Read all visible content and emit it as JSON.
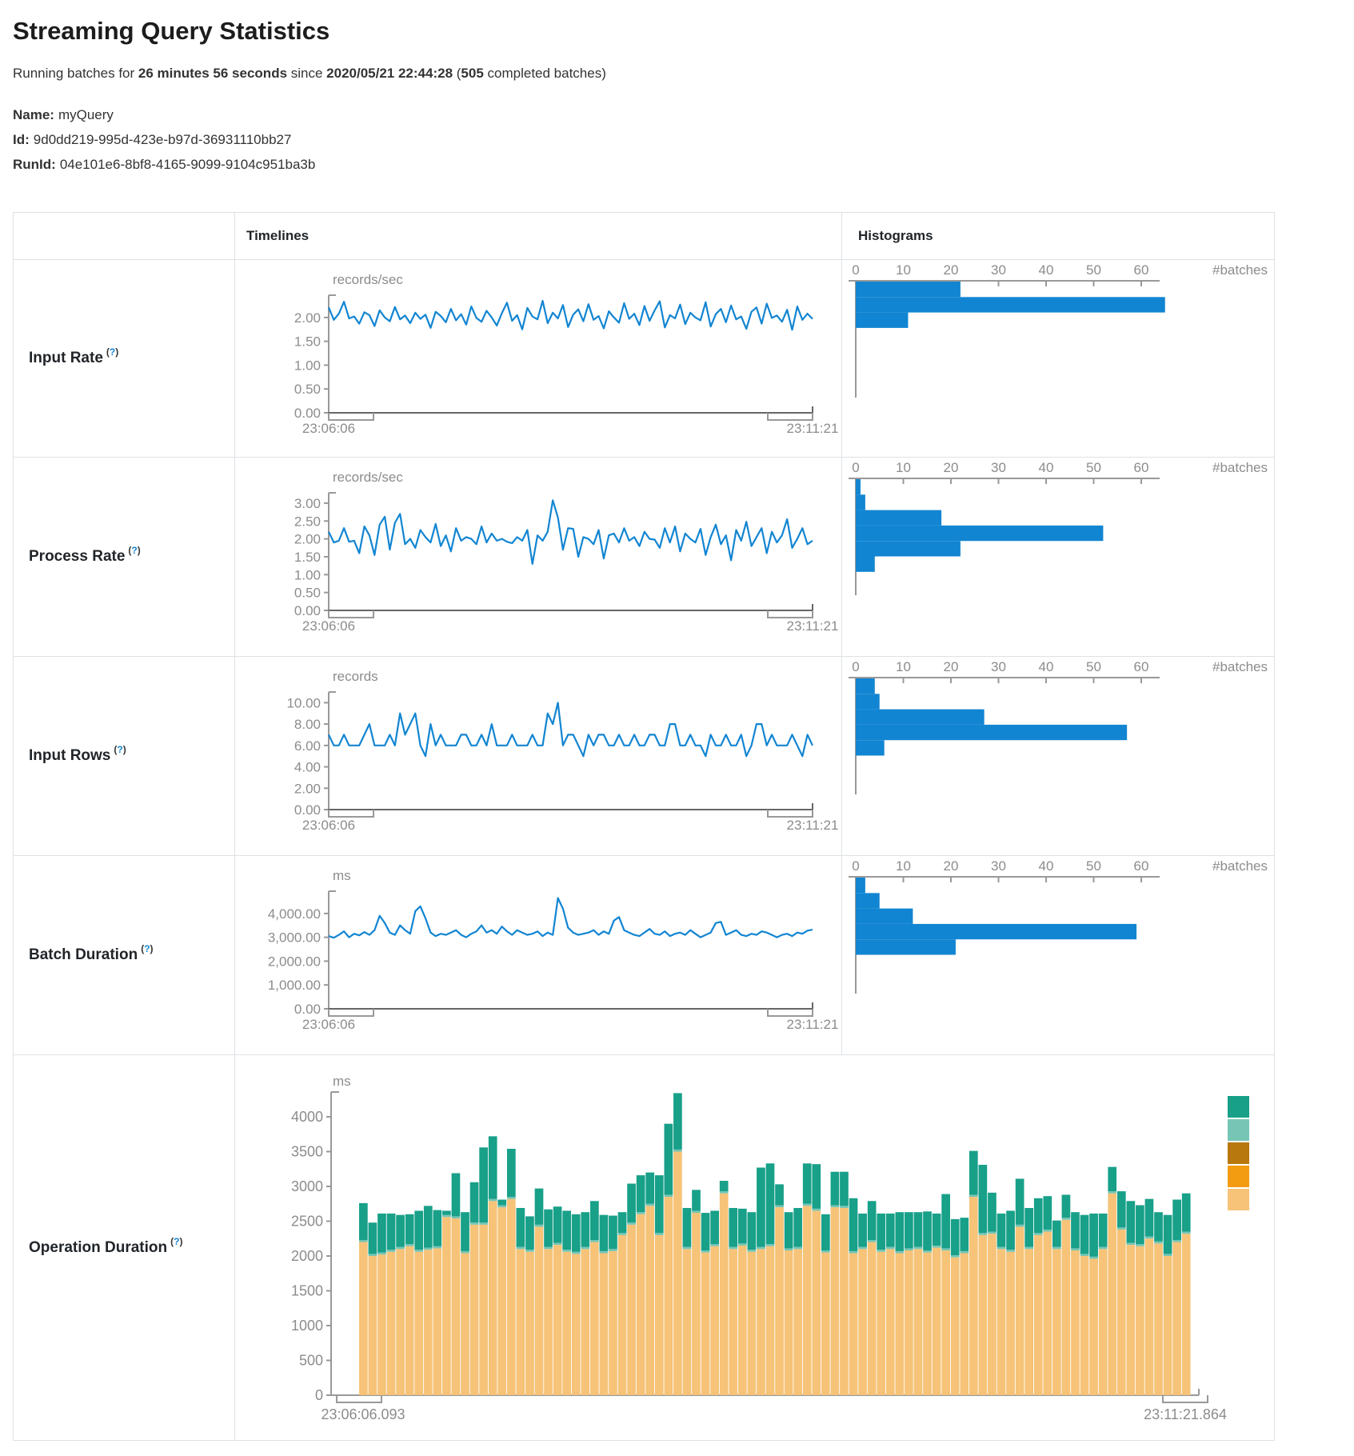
{
  "page": {
    "title": "Streaming Query Statistics",
    "subtitle": {
      "prefix": "Running batches for ",
      "duration": "26 minutes 56 seconds",
      "since": " since ",
      "start_time": "2020/05/21 22:44:28",
      "open_paren": " (",
      "completed_batches": "505",
      "suffix": " completed batches)"
    },
    "query": {
      "name_label": "Name:",
      "name": "myQuery",
      "id_label": "Id:",
      "id": "9d0dd219-995d-423e-b97d-36931110bb27",
      "run_id_label": "RunId:",
      "run_id": "04e101e6-8bf8-4165-9099-9104c951ba3b"
    }
  },
  "table": {
    "timelines_header": "Timelines",
    "histograms_header": "Histograms",
    "rows": [
      {
        "label": "Input Rate",
        "help_open": "(",
        "help_mark": "?",
        "help_close": ")"
      },
      {
        "label": "Process Rate",
        "help_open": "(",
        "help_mark": "?",
        "help_close": ")"
      },
      {
        "label": "Input Rows",
        "help_open": "(",
        "help_mark": "?",
        "help_close": ")"
      },
      {
        "label": "Batch Duration",
        "help_open": "(",
        "help_mark": "?",
        "help_close": ")"
      },
      {
        "label": "Operation Duration",
        "help_open": "(",
        "help_mark": "?",
        "help_close": ")"
      }
    ]
  },
  "colors": {
    "line_blue": "#1285d2",
    "hist_blue": "#1285d2",
    "axis_text": "#8c8c8c",
    "axis_line": "#999999",
    "axis_dark": "#666666",
    "teal": "#18a089",
    "light_teal": "#76c5b5",
    "dark_gold": "#b8780e",
    "orange": "#f39c11",
    "tan": "#f6c378"
  },
  "chart_data": [
    {
      "id": "input-rate-timeline",
      "type": "line",
      "title": "records/sec",
      "x_min": "23:06:06",
      "x_max": "23:11:21",
      "ymax": 2.4,
      "ytick_values": [
        0,
        0.5,
        1,
        1.5,
        2
      ],
      "ytick_labels": [
        "0.00",
        "0.50",
        "1.00",
        "1.50",
        "2.00"
      ],
      "color": "#1285d2",
      "values": [
        2.21,
        1.95,
        2.08,
        2.33,
        1.98,
        2.02,
        1.87,
        2.11,
        2.05,
        1.82,
        2.15,
        2.0,
        1.92,
        2.22,
        1.96,
        2.04,
        1.88,
        2.1,
        1.97,
        2.06,
        1.78,
        2.12,
        2.03,
        1.9,
        2.18,
        1.94,
        2.07,
        1.85,
        2.23,
        1.99,
        1.91,
        2.14,
        2.0,
        1.83,
        2.09,
        2.31,
        1.93,
        2.05,
        1.75,
        2.2,
        2.02,
        1.96,
        2.35,
        1.88,
        2.1,
        1.98,
        2.26,
        1.8,
        2.06,
        2.17,
        1.92,
        2.28,
        1.95,
        2.03,
        1.77,
        2.13,
        2.0,
        1.89,
        2.3,
        1.97,
        2.08,
        1.84,
        2.24,
        1.93,
        2.15,
        2.34,
        1.79,
        2.05,
        1.98,
        2.27,
        1.86,
        2.1,
        2.0,
        1.94,
        2.32,
        1.81,
        2.07,
        2.18,
        1.9,
        2.25,
        1.96,
        2.02,
        1.76,
        2.12,
        2.21,
        1.87,
        2.29,
        1.99,
        2.04,
        1.91,
        2.16,
        1.74,
        2.23,
        1.95,
        2.08,
        1.97
      ]
    },
    {
      "id": "input-rate-histogram",
      "type": "bar-h",
      "xlabel": "#batches",
      "xticks": [
        0,
        10,
        20,
        30,
        40,
        50,
        60
      ],
      "color": "#1285d2",
      "values": [
        22,
        65,
        11
      ]
    },
    {
      "id": "process-rate-timeline",
      "type": "line",
      "title": "records/sec",
      "x_min": "23:06:06",
      "x_max": "23:11:21",
      "ymax": 3.2,
      "ytick_values": [
        0,
        0.5,
        1,
        1.5,
        2,
        2.5,
        3
      ],
      "ytick_labels": [
        "0.00",
        "0.50",
        "1.00",
        "1.50",
        "2.00",
        "2.50",
        "3.00"
      ],
      "color": "#1285d2",
      "values": [
        2.2,
        1.9,
        1.95,
        2.3,
        1.92,
        1.95,
        1.6,
        2.35,
        2.1,
        1.55,
        2.4,
        2.62,
        1.7,
        2.45,
        2.7,
        1.85,
        2.0,
        1.75,
        2.25,
        2.05,
        1.9,
        2.42,
        1.8,
        2.1,
        1.65,
        2.3,
        1.95,
        2.05,
        2.0,
        1.85,
        2.35,
        1.9,
        2.15,
        1.95,
        2.0,
        1.92,
        1.88,
        2.05,
        1.95,
        2.25,
        1.3,
        2.1,
        1.95,
        2.2,
        3.08,
        2.6,
        1.7,
        2.3,
        2.28,
        1.5,
        2.05,
        2.0,
        1.85,
        2.25,
        1.45,
        2.1,
        2.15,
        1.9,
        2.3,
        1.95,
        2.05,
        1.8,
        2.2,
        2.0,
        1.98,
        1.75,
        2.3,
        1.9,
        2.35,
        1.65,
        2.15,
        2.0,
        1.9,
        2.28,
        1.55,
        2.05,
        2.4,
        1.85,
        2.1,
        1.4,
        2.25,
        1.95,
        2.48,
        1.8,
        2.05,
        2.3,
        1.6,
        2.2,
        1.9,
        2.1,
        2.55,
        1.75,
        2.0,
        2.3,
        1.85,
        1.95
      ]
    },
    {
      "id": "process-rate-histogram",
      "type": "bar-h",
      "xlabel": "#batches",
      "xticks": [
        0,
        10,
        20,
        30,
        40,
        50,
        60
      ],
      "color": "#1285d2",
      "values": [
        1,
        2,
        18,
        52,
        22,
        4
      ]
    },
    {
      "id": "input-rows-timeline",
      "type": "line",
      "title": "records",
      "x_min": "23:06:06",
      "x_max": "23:11:21",
      "ymax": 10.7,
      "ytick_values": [
        0,
        2,
        4,
        6,
        8,
        10
      ],
      "ytick_labels": [
        "0.00",
        "2.00",
        "4.00",
        "6.00",
        "8.00",
        "10.00"
      ],
      "color": "#1285d2",
      "values": [
        7,
        6,
        6,
        7,
        6,
        6,
        6,
        7,
        8,
        6,
        6,
        6,
        7,
        6,
        9,
        7,
        8,
        9,
        6,
        5,
        8,
        6,
        7,
        6,
        6,
        6,
        7,
        7,
        6,
        6,
        7,
        6,
        8,
        6,
        6,
        6,
        7,
        6,
        6,
        6,
        7,
        6,
        6,
        9,
        8,
        10,
        6,
        7,
        7,
        6,
        5,
        7,
        6,
        7,
        7,
        6,
        6,
        7,
        6,
        6,
        7,
        6,
        6,
        7,
        7,
        6,
        6,
        8,
        8,
        6,
        6,
        7,
        6,
        6,
        5,
        7,
        6,
        6,
        7,
        6,
        6,
        7,
        5,
        6,
        8,
        8,
        6,
        7,
        6,
        6,
        6,
        7,
        6,
        5,
        7,
        6
      ]
    },
    {
      "id": "input-rows-histogram",
      "type": "bar-h",
      "xlabel": "#batches",
      "xticks": [
        0,
        10,
        20,
        30,
        40,
        50,
        60
      ],
      "color": "#1285d2",
      "values": [
        4,
        5,
        27,
        57,
        6
      ]
    },
    {
      "id": "batch-duration-timeline",
      "type": "line",
      "title": "ms",
      "x_min": "23:06:06",
      "x_max": "23:11:21",
      "ymax": 4800,
      "ytick_values": [
        0,
        1000,
        2000,
        3000,
        4000
      ],
      "ytick_labels": [
        "0.00",
        "1,000.00",
        "2,000.00",
        "3,000.00",
        "4,000.00"
      ],
      "color": "#1285d2",
      "values": [
        3050,
        2980,
        3100,
        3250,
        3000,
        3150,
        3080,
        3220,
        3100,
        3300,
        3900,
        3600,
        3200,
        3100,
        3500,
        3300,
        3150,
        4100,
        4300,
        3800,
        3200,
        3050,
        3150,
        3100,
        3200,
        3300,
        3100,
        3000,
        3150,
        3250,
        3500,
        3200,
        3300,
        3150,
        3450,
        3250,
        3100,
        3300,
        3200,
        3100,
        3150,
        3250,
        3050,
        3200,
        3100,
        4650,
        4200,
        3400,
        3200,
        3100,
        3150,
        3200,
        3300,
        3100,
        3250,
        3150,
        3700,
        3850,
        3300,
        3200,
        3100,
        3050,
        3200,
        3350,
        3150,
        3100,
        3250,
        3050,
        3150,
        3200,
        3100,
        3300,
        3150,
        3000,
        3100,
        3200,
        3600,
        3650,
        3100,
        3200,
        3300,
        3100,
        3050,
        3150,
        3100,
        3250,
        3200,
        3100,
        3000,
        3100,
        3150,
        3050,
        3200,
        3150,
        3280,
        3320
      ]
    },
    {
      "id": "batch-duration-histogram",
      "type": "bar-h",
      "xlabel": "#batches",
      "xticks": [
        0,
        10,
        20,
        30,
        40,
        50,
        60
      ],
      "color": "#1285d2",
      "values": [
        2,
        5,
        12,
        59,
        21
      ]
    },
    {
      "id": "operation-duration",
      "type": "stacked-bar",
      "title": "ms",
      "x_min": "23:06:06.093",
      "x_max": "23:11:21.864",
      "ymax": 4400,
      "ytick_values": [
        0,
        500,
        1000,
        1500,
        2000,
        2500,
        3000,
        3500,
        4000
      ],
      "ytick_labels": [
        "0",
        "500",
        "1000",
        "1500",
        "2000",
        "2500",
        "3000",
        "3500",
        "4000"
      ],
      "legend_colors": [
        "#18a089",
        "#76c5b5",
        "#b8780e",
        "#f39c11",
        "#f6c378"
      ],
      "sliver_ms": 30,
      "series": [
        {
          "name": "base",
          "color": "#f6c378",
          "values": [
            2200,
            2000,
            2020,
            2060,
            2100,
            2140,
            2060,
            2090,
            2110,
            2560,
            2540,
            2040,
            2450,
            2450,
            2790,
            2700,
            2820,
            2100,
            2060,
            2420,
            2100,
            2160,
            2060,
            2030,
            2100,
            2200,
            2040,
            2070,
            2300,
            2450,
            2600,
            2720,
            2300,
            2850,
            3500,
            2100,
            2620,
            2050,
            2140,
            2900,
            2100,
            2150,
            2060,
            2100,
            2140,
            2700,
            2080,
            2100,
            2720,
            2650,
            2050,
            2700,
            2690,
            2040,
            2100,
            2200,
            2060,
            2100,
            2040,
            2080,
            2100,
            2050,
            2120,
            2080,
            1980,
            2040,
            2850,
            2300,
            2320,
            2100,
            2060,
            2420,
            2100,
            2300,
            2350,
            2100,
            2520,
            2080,
            2000,
            1960,
            2100,
            2900,
            2380,
            2160,
            2140,
            2250,
            2180,
            2000,
            2200,
            2320
          ]
        },
        {
          "name": "sliver",
          "color": "#76c5b5",
          "constant": 30
        },
        {
          "name": "top",
          "color": "#18a089",
          "values": [
            530,
            450,
            560,
            520,
            460,
            430,
            560,
            600,
            520,
            60,
            620,
            560,
            580,
            1080,
            900,
            80,
            690,
            560,
            480,
            520,
            540,
            520,
            560,
            540,
            500,
            560,
            520,
            480,
            300,
            560,
            530,
            450,
            830,
            1020,
            810,
            560,
            300,
            540,
            480,
            150,
            560,
            500,
            540,
            1140,
            1160,
            300,
            520,
            560,
            580,
            640,
            520,
            480,
            490,
            760,
            480,
            560,
            520,
            480,
            560,
            520,
            500,
            560,
            460,
            780,
            520,
            480,
            630,
            980,
            560,
            480,
            560,
            660,
            560,
            500,
            480,
            380,
            330,
            520,
            560,
            620,
            480,
            350,
            520,
            600,
            560,
            540,
            420,
            560,
            580,
            550
          ]
        }
      ]
    }
  ]
}
